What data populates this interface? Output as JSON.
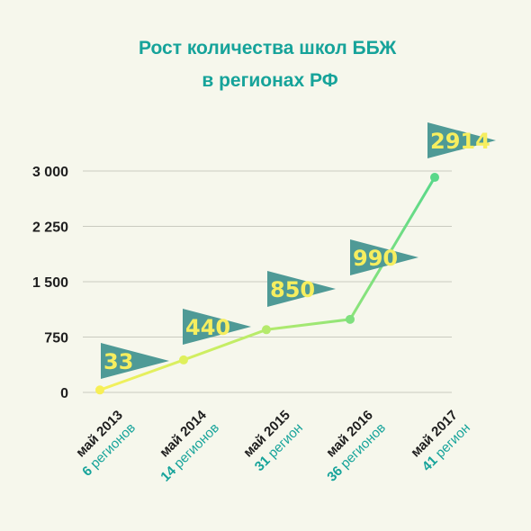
{
  "colors": {
    "background": "#f6f7ec",
    "title": "#16a39a",
    "flag": "#4f9a96",
    "flag_text": "#f6ee5f",
    "region_text": "#16a39a",
    "grid": "#c9cbbf",
    "axis_text": "#1e1e1e",
    "line_gradient": [
      "#f7f05a",
      "#c9ee63",
      "#8ee47a",
      "#5ad88a"
    ]
  },
  "chart_data": {
    "type": "line",
    "title": "Рост количества школ ББЖ\nв регионах РФ",
    "ylim": [
      0,
      3000
    ],
    "y_ticks": [
      0,
      750,
      1500,
      2250,
      3000
    ],
    "y_tick_labels": [
      "0",
      "750",
      "1 500",
      "2 250",
      "3 000"
    ],
    "grid": true,
    "categories": [
      "май 2013",
      "май 2014",
      "май 2015",
      "май 2016",
      "май 2017"
    ],
    "sublabels": [
      {
        "num": "6",
        "text": "регионов"
      },
      {
        "num": "14",
        "text": "регионов"
      },
      {
        "num": "31",
        "text": "регион"
      },
      {
        "num": "36",
        "text": "регионов"
      },
      {
        "num": "41",
        "text": "регион"
      }
    ],
    "values": [
      33,
      440,
      850,
      990,
      2914
    ],
    "data_labels": [
      "33",
      "440",
      "850",
      "990",
      "2914"
    ]
  }
}
